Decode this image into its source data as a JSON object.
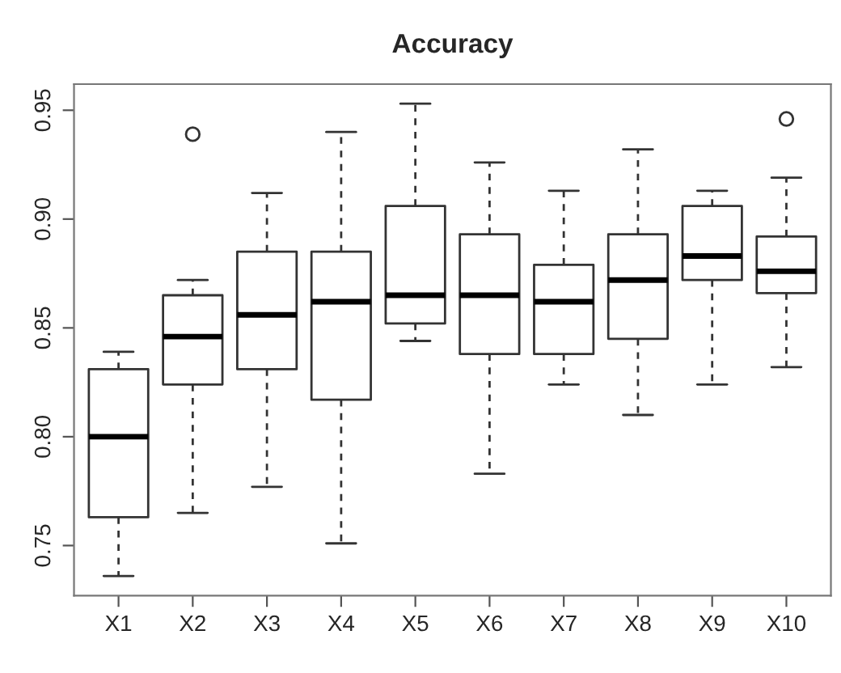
{
  "chart_data": {
    "type": "box",
    "title": "Accuracy",
    "categories": [
      "X1",
      "X2",
      "X3",
      "X4",
      "X5",
      "X6",
      "X7",
      "X8",
      "X9",
      "X10"
    ],
    "boxes": [
      {
        "low": 0.736,
        "q1": 0.763,
        "median": 0.8,
        "q3": 0.831,
        "high": 0.839
      },
      {
        "low": 0.765,
        "q1": 0.824,
        "median": 0.846,
        "q3": 0.865,
        "high": 0.872,
        "outliers": [
          0.939
        ]
      },
      {
        "low": 0.777,
        "q1": 0.831,
        "median": 0.856,
        "q3": 0.885,
        "high": 0.912
      },
      {
        "low": 0.751,
        "q1": 0.817,
        "median": 0.862,
        "q3": 0.885,
        "high": 0.94
      },
      {
        "low": 0.844,
        "q1": 0.852,
        "median": 0.865,
        "q3": 0.906,
        "high": 0.953
      },
      {
        "low": 0.783,
        "q1": 0.838,
        "median": 0.865,
        "q3": 0.893,
        "high": 0.926
      },
      {
        "low": 0.824,
        "q1": 0.838,
        "median": 0.862,
        "q3": 0.879,
        "high": 0.913
      },
      {
        "low": 0.81,
        "q1": 0.845,
        "median": 0.872,
        "q3": 0.893,
        "high": 0.932
      },
      {
        "low": 0.824,
        "q1": 0.872,
        "median": 0.883,
        "q3": 0.906,
        "high": 0.913
      },
      {
        "low": 0.832,
        "q1": 0.866,
        "median": 0.876,
        "q3": 0.892,
        "high": 0.919,
        "outliers": [
          0.946
        ]
      }
    ],
    "ylim": [
      0.727,
      0.962
    ],
    "yticks": [
      {
        "value": 0.75,
        "label": "0.75"
      },
      {
        "value": 0.8,
        "label": "0.80"
      },
      {
        "value": 0.85,
        "label": "0.85"
      },
      {
        "value": 0.9,
        "label": "0.90"
      },
      {
        "value": 0.95,
        "label": "0.95"
      }
    ],
    "grid": false,
    "legend": false
  }
}
